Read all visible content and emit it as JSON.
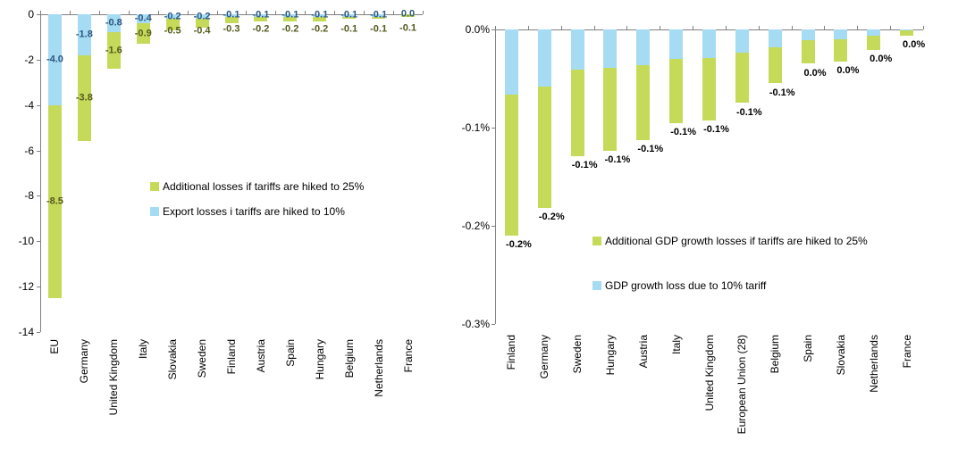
{
  "colors": {
    "green_bar": "#C6DA5A",
    "blue_bar": "#A5DBF3",
    "blue_label_text": "#2E5681",
    "green_label_text": "#555A1E",
    "black_label_text": "#000000",
    "axis": "#808080"
  },
  "chart_data": [
    {
      "type": "bar",
      "stacked": true,
      "grid": false,
      "title": "",
      "xlabel": "",
      "ylabel": "",
      "ylim": [
        0,
        -14
      ],
      "y_ticks": [
        "0",
        "-2",
        "-4",
        "-6",
        "-8",
        "-10",
        "-12",
        "-14"
      ],
      "categories": [
        "EU",
        "Germany",
        "United Kingdom",
        "Italy",
        "Slovakia",
        "Sweden",
        "Finland",
        "Austria",
        "Spain",
        "Hungary",
        "Belgium",
        "Netherlands",
        "France"
      ],
      "series": [
        {
          "name": "Export losses i tariffs are hiked to 10%",
          "color": "#A5DBF3",
          "values": [
            -4.0,
            -1.8,
            -0.8,
            -0.4,
            -0.2,
            -0.2,
            -0.1,
            -0.1,
            -0.1,
            -0.1,
            -0.1,
            -0.1,
            0.0
          ]
        },
        {
          "name": "Additional losses if tariffs are hiked to 25%",
          "color": "#C6DA5A",
          "values": [
            -8.5,
            -3.8,
            -1.6,
            -0.9,
            -0.5,
            -0.4,
            -0.3,
            -0.2,
            -0.2,
            -0.2,
            -0.1,
            -0.1,
            -0.1
          ]
        }
      ],
      "data_labels": {
        "blue": [
          "-4.0",
          "-1.8",
          "-0.8",
          "-0.4",
          "-0.2",
          "-0.2",
          "-0.1",
          "-0.1",
          "-0.1",
          "-0.1",
          "-0.1",
          "-0.1",
          "0.0"
        ],
        "green": [
          "-8.5",
          "-3.8",
          "-1.6",
          "-0.9",
          "-0.5",
          "-0.4",
          "-0.3",
          "-0.2",
          "-0.2",
          "-0.2",
          "-0.1",
          "-0.1",
          "-0.1"
        ]
      },
      "legend": [
        {
          "label": "Additional losses if tariffs are hiked to 25%",
          "color": "#C6DA5A"
        },
        {
          "label": "Export losses i tariffs are hiked to 10%",
          "color": "#A5DBF3"
        }
      ],
      "legend_position": "inside-right"
    },
    {
      "type": "bar",
      "stacked": true,
      "grid": false,
      "title": "",
      "xlabel": "",
      "ylabel": "",
      "ylim": [
        0,
        -0.3
      ],
      "y_ticks": [
        "0.0%",
        "-0.1%",
        "-0.2%",
        "-0.3%"
      ],
      "categories": [
        "Finland",
        "Germany",
        "Sweden",
        "Hungary",
        "Austria",
        "Italy",
        "United Kingdom",
        "European Union (28)",
        "Belgium",
        "Spain",
        "Slovakia",
        "Netherlands",
        "France"
      ],
      "series": [
        {
          "name": "GDP growth loss due to 10% tariff",
          "color": "#A5DBF3",
          "values": [
            -0.066,
            -0.058,
            -0.041,
            -0.039,
            -0.036,
            -0.03,
            -0.029,
            -0.024,
            -0.018,
            -0.011,
            -0.01,
            -0.0065,
            -0.001
          ]
        },
        {
          "name": "Additional GDP growth losses if tariffs are hiked to 25%",
          "color": "#C6DA5A",
          "values": [
            -0.144,
            -0.124,
            -0.088,
            -0.085,
            -0.077,
            -0.065,
            -0.064,
            -0.051,
            -0.037,
            -0.024,
            -0.023,
            -0.014,
            -0.005
          ]
        }
      ],
      "data_labels": {
        "total": [
          "-0.2%",
          "-0.2%",
          "-0.1%",
          "-0.1%",
          "-0.1%",
          "-0.1%",
          "-0.1%",
          "-0.1%",
          "-0.1%",
          "0.0%",
          "0.0%",
          "0.0%",
          "0.0%"
        ]
      },
      "legend": [
        {
          "label": "Additional GDP growth losses if tariffs are hiked to 25%",
          "color": "#C6DA5A"
        },
        {
          "label": "GDP growth loss due to 10% tariff",
          "color": "#A5DBF3"
        }
      ],
      "legend_position": "inside-right"
    }
  ]
}
